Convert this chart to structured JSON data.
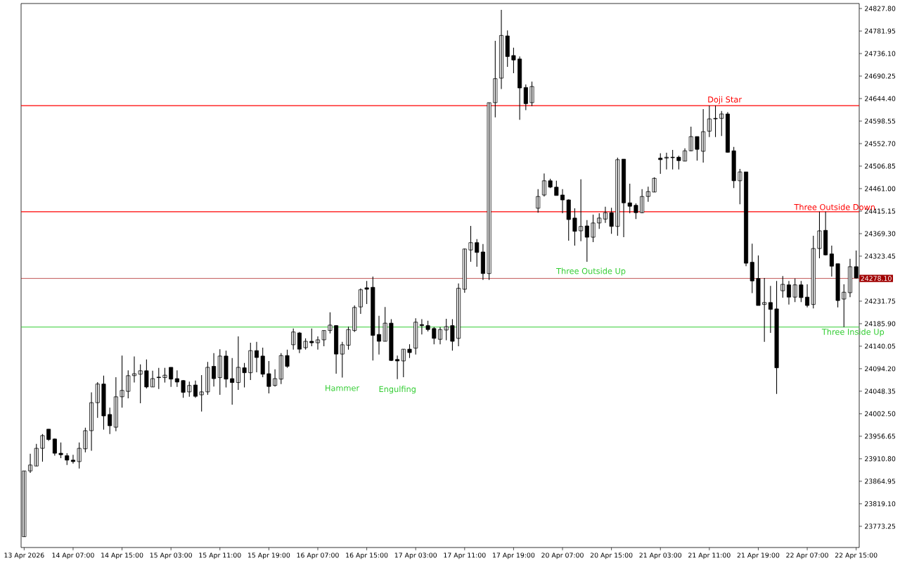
{
  "chart_data": {
    "type": "candlestick",
    "categories": [
      "13 Apr 2026",
      null,
      null,
      null,
      null,
      null,
      null,
      null,
      "14 Apr 07:00",
      null,
      null,
      null,
      null,
      null,
      null,
      null,
      "14 Apr 15:00",
      null,
      null,
      null,
      null,
      null,
      null,
      null,
      "15 Apr 03:00",
      null,
      null,
      null,
      null,
      null,
      null,
      null,
      "15 Apr 11:00",
      null,
      null,
      null,
      null,
      null,
      null,
      null,
      "15 Apr 19:00",
      null,
      null,
      null,
      null,
      null,
      null,
      null,
      "16 Apr 07:00",
      null,
      null,
      null,
      null,
      null,
      null,
      null,
      "16 Apr 15:00",
      null,
      null,
      null,
      null,
      null,
      null,
      null,
      "17 Apr 03:00",
      null,
      null,
      null,
      null,
      null,
      null,
      null,
      "17 Apr 11:00",
      null,
      null,
      null,
      null,
      null,
      null,
      null,
      "17 Apr 19:00",
      null,
      null,
      null,
      null,
      null,
      null,
      null,
      "20 Apr 07:00",
      null,
      null,
      null,
      null,
      null,
      null,
      null,
      "20 Apr 15:00",
      null,
      null,
      null,
      null,
      null,
      null,
      null,
      "21 Apr 03:00",
      null,
      null,
      null,
      null,
      null,
      null,
      null,
      "21 Apr 11:00",
      null,
      null,
      null,
      null,
      null,
      null,
      null,
      "21 Apr 19:00",
      null,
      null,
      null,
      null,
      null,
      null,
      null,
      "22 Apr 07:00",
      null,
      null,
      null,
      null,
      null,
      null,
      null,
      "22 Apr 15:00"
    ],
    "ohlc": [
      [
        23752,
        23886,
        23752,
        23886
      ],
      [
        23886,
        23921,
        23882,
        23898
      ],
      [
        23896,
        23941,
        23896,
        23932
      ],
      [
        23932,
        23961,
        23905,
        23958
      ],
      [
        23971,
        23971,
        23947,
        23950
      ],
      [
        23951,
        23952,
        23917,
        23922
      ],
      [
        23922,
        23944,
        23912,
        23919
      ],
      [
        23917,
        23922,
        23898,
        23908
      ],
      [
        23908,
        23919,
        23901,
        23905
      ],
      [
        23905,
        23944,
        23891,
        23932
      ],
      [
        23931,
        23974,
        23924,
        23968
      ],
      [
        23968,
        24046,
        23927,
        24025
      ],
      [
        24025,
        24067,
        23994,
        24063
      ],
      [
        24063,
        24080,
        23970,
        23998
      ],
      [
        24001,
        24015,
        23961,
        23978
      ],
      [
        23975,
        24077,
        23967,
        24037
      ],
      [
        24037,
        24121,
        24015,
        24050
      ],
      [
        24048,
        24091,
        24034,
        24080
      ],
      [
        24080,
        24119,
        24066,
        24084
      ],
      [
        24083,
        24103,
        24024,
        24090
      ],
      [
        24090,
        24113,
        24054,
        24057
      ],
      [
        24057,
        24090,
        24057,
        24074
      ],
      [
        24077,
        24096,
        24053,
        24076
      ],
      [
        24076,
        24096,
        24066,
        24081
      ],
      [
        24097,
        24097,
        24057,
        24073
      ],
      [
        24074,
        24091,
        24057,
        24067
      ],
      [
        24070,
        24071,
        24035,
        24046
      ],
      [
        24047,
        24068,
        24037,
        24060
      ],
      [
        24061,
        24070,
        24035,
        24038
      ],
      [
        24041,
        24081,
        24007,
        24047
      ],
      [
        24047,
        24108,
        24041,
        24097
      ],
      [
        24099,
        24126,
        24058,
        24074
      ],
      [
        24076,
        24134,
        24041,
        24120
      ],
      [
        24120,
        24131,
        24056,
        24073
      ],
      [
        24074,
        24116,
        24021,
        24066
      ],
      [
        24066,
        24160,
        24051,
        24097
      ],
      [
        24096,
        24106,
        24056,
        24086
      ],
      [
        24086,
        24147,
        24071,
        24131
      ],
      [
        24131,
        24149,
        24087,
        24117
      ],
      [
        24120,
        24137,
        24077,
        24083
      ],
      [
        24084,
        24110,
        24044,
        24058
      ],
      [
        24060,
        24093,
        24058,
        24074
      ],
      [
        24073,
        24126,
        24063,
        24121
      ],
      [
        24121,
        24133,
        24096,
        24099
      ],
      [
        24143,
        24176,
        24133,
        24169
      ],
      [
        24167,
        24169,
        24126,
        24134
      ],
      [
        24137,
        24156,
        24133,
        24150
      ],
      [
        24150,
        24176,
        24140,
        24147
      ],
      [
        24147,
        24160,
        24133,
        24153
      ],
      [
        24153,
        24172,
        24140,
        24172
      ],
      [
        24172,
        24209,
        24166,
        24183
      ],
      [
        24182,
        24183,
        24084,
        24124
      ],
      [
        24124,
        24149,
        24076,
        24143
      ],
      [
        24142,
        24180,
        24133,
        24174
      ],
      [
        24172,
        24223,
        24169,
        24219
      ],
      [
        24220,
        24258,
        24206,
        24255
      ],
      [
        24259,
        24273,
        24226,
        24256
      ],
      [
        24260,
        24282,
        24111,
        24162
      ],
      [
        24164,
        24202,
        24123,
        24150
      ],
      [
        24150,
        24220,
        24150,
        24187
      ],
      [
        24187,
        24195,
        24110,
        24111
      ],
      [
        24113,
        24121,
        24073,
        24110
      ],
      [
        24110,
        24134,
        24077,
        24134
      ],
      [
        24134,
        24144,
        24116,
        24127
      ],
      [
        24136,
        24197,
        24123,
        24189
      ],
      [
        24184,
        24195,
        24164,
        24182
      ],
      [
        24182,
        24192,
        24170,
        24174
      ],
      [
        24176,
        24179,
        24144,
        24156
      ],
      [
        24154,
        24179,
        24144,
        24174
      ],
      [
        24173,
        24196,
        24152,
        24180
      ],
      [
        24182,
        24195,
        24131,
        24150
      ],
      [
        24156,
        24268,
        24140,
        24258
      ],
      [
        24256,
        24339,
        24249,
        24338
      ],
      [
        24336,
        24385,
        24312,
        24351
      ],
      [
        24351,
        24358,
        24302,
        24331
      ],
      [
        24332,
        24348,
        24275,
        24288
      ],
      [
        24288,
        24636,
        24275,
        24636
      ],
      [
        24636,
        24762,
        24606,
        24685
      ],
      [
        24686,
        24825,
        24664,
        24773
      ],
      [
        24772,
        24783,
        24709,
        24730
      ],
      [
        24732,
        24748,
        24696,
        24723
      ],
      [
        24725,
        24730,
        24601,
        24666
      ],
      [
        24667,
        24673,
        24621,
        24634
      ],
      [
        24636,
        24679,
        24629,
        24669
      ],
      [
        24421,
        24460,
        24412,
        24445
      ],
      [
        24448,
        24492,
        24445,
        24477
      ],
      [
        24477,
        24481,
        24462,
        24464
      ],
      [
        24464,
        24477,
        24447,
        24447
      ],
      [
        24448,
        24460,
        24411,
        24438
      ],
      [
        24438,
        24439,
        24355,
        24398
      ],
      [
        24401,
        24421,
        24345,
        24374
      ],
      [
        24375,
        24480,
        24354,
        24384
      ],
      [
        24385,
        24397,
        24312,
        24362
      ],
      [
        24362,
        24408,
        24352,
        24391
      ],
      [
        24391,
        24411,
        24379,
        24401
      ],
      [
        24399,
        24424,
        24391,
        24412
      ],
      [
        24412,
        24422,
        24369,
        24384
      ],
      [
        24384,
        24524,
        24365,
        24520
      ],
      [
        24521,
        24521,
        24362,
        24432
      ],
      [
        24432,
        24471,
        24411,
        24425
      ],
      [
        24427,
        24431,
        24399,
        24412
      ],
      [
        24412,
        24460,
        24411,
        24445
      ],
      [
        24445,
        24465,
        24434,
        24455
      ],
      [
        24454,
        24484,
        24454,
        24482
      ],
      [
        24523,
        24533,
        24491,
        24520
      ],
      [
        24523,
        24534,
        24500,
        24525
      ],
      [
        24525,
        24540,
        24500,
        24524
      ],
      [
        24525,
        24528,
        24500,
        24518
      ],
      [
        24517,
        24543,
        24517,
        24538
      ],
      [
        24538,
        24587,
        24537,
        24567
      ],
      [
        24567,
        24567,
        24518,
        24541
      ],
      [
        24537,
        24623,
        24514,
        24577
      ],
      [
        24578,
        24630,
        24566,
        24603
      ],
      [
        24604,
        24630,
        24566,
        24603
      ],
      [
        24604,
        24619,
        24568,
        24613
      ],
      [
        24613,
        24617,
        24534,
        24535
      ],
      [
        24538,
        24546,
        24462,
        24477
      ],
      [
        24477,
        24501,
        24429,
        24495
      ],
      [
        24495,
        24495,
        24303,
        24309
      ],
      [
        24311,
        24349,
        24248,
        24273
      ],
      [
        24278,
        24325,
        24223,
        24223
      ],
      [
        24225,
        24279,
        24149,
        24229
      ],
      [
        24229,
        24263,
        24167,
        24215
      ],
      [
        24216,
        24273,
        24043,
        24096
      ],
      [
        24253,
        24283,
        24239,
        24266
      ],
      [
        24265,
        24273,
        24225,
        24240
      ],
      [
        24240,
        24278,
        24230,
        24265
      ],
      [
        24265,
        24273,
        24230,
        24239
      ],
      [
        24240,
        24266,
        24219,
        24223
      ],
      [
        24225,
        24365,
        24217,
        24339
      ],
      [
        24339,
        24414,
        24319,
        24375
      ],
      [
        24376,
        24414,
        24325,
        24326
      ],
      [
        24328,
        24345,
        24282,
        24303
      ],
      [
        24308,
        24308,
        24219,
        24233
      ],
      [
        24236,
        24266,
        24179,
        24250
      ],
      [
        24249,
        24318,
        24240,
        24302
      ],
      [
        24302,
        24335,
        24278,
        24279
      ]
    ],
    "ylim": [
      23730,
      24838
    ],
    "yticks": [
      {
        "value": 24827.8,
        "label": "24827.80"
      },
      {
        "value": 24781.95,
        "label": "24781.95"
      },
      {
        "value": 24736.1,
        "label": "24736.10"
      },
      {
        "value": 24690.25,
        "label": "24690.25"
      },
      {
        "value": 24644.4,
        "label": "24644.40"
      },
      {
        "value": 24598.55,
        "label": "24598.55"
      },
      {
        "value": 24552.7,
        "label": "24552.70"
      },
      {
        "value": 24506.85,
        "label": "24506.85"
      },
      {
        "value": 24461,
        "label": "24461.00"
      },
      {
        "value": 24415.15,
        "label": "24415.15"
      },
      {
        "value": 24369.3,
        "label": "24369.30"
      },
      {
        "value": 24323.45,
        "label": "24323.45"
      },
      {
        "value": 24231.75,
        "label": "24231.75"
      },
      {
        "value": 24185.9,
        "label": "24185.90"
      },
      {
        "value": 24140.05,
        "label": "24140.05"
      },
      {
        "value": 24094.2,
        "label": "24094.20"
      },
      {
        "value": 24048.35,
        "label": "24048.35"
      },
      {
        "value": 24002.5,
        "label": "24002.50"
      },
      {
        "value": 23956.65,
        "label": "23956.65"
      },
      {
        "value": 23910.8,
        "label": "23910.80"
      },
      {
        "value": 23864.95,
        "label": "23864.95"
      },
      {
        "value": 23819.1,
        "label": "23819.10"
      },
      {
        "value": 23773.25,
        "label": "23773.25"
      }
    ],
    "ref_lines": [
      {
        "axis": "y",
        "value": 24278.1,
        "label": "24278.10",
        "color": "#a00000"
      },
      {
        "axis": "y",
        "value": 24630,
        "color": "#ff0000"
      },
      {
        "axis": "y",
        "value": 24414,
        "color": "#ff0000"
      },
      {
        "axis": "y",
        "value": 24179,
        "color": "#32cd32"
      }
    ],
    "annotations": [
      "Hammer",
      "Engulfing",
      "Three Outside Up",
      {
        "text": "Doji Star",
        "y": 24630
      },
      {
        "text": "Three Outside Down",
        "y": 24414
      },
      {
        "text": "Three Inside Up",
        "y": 24179
      }
    ]
  }
}
